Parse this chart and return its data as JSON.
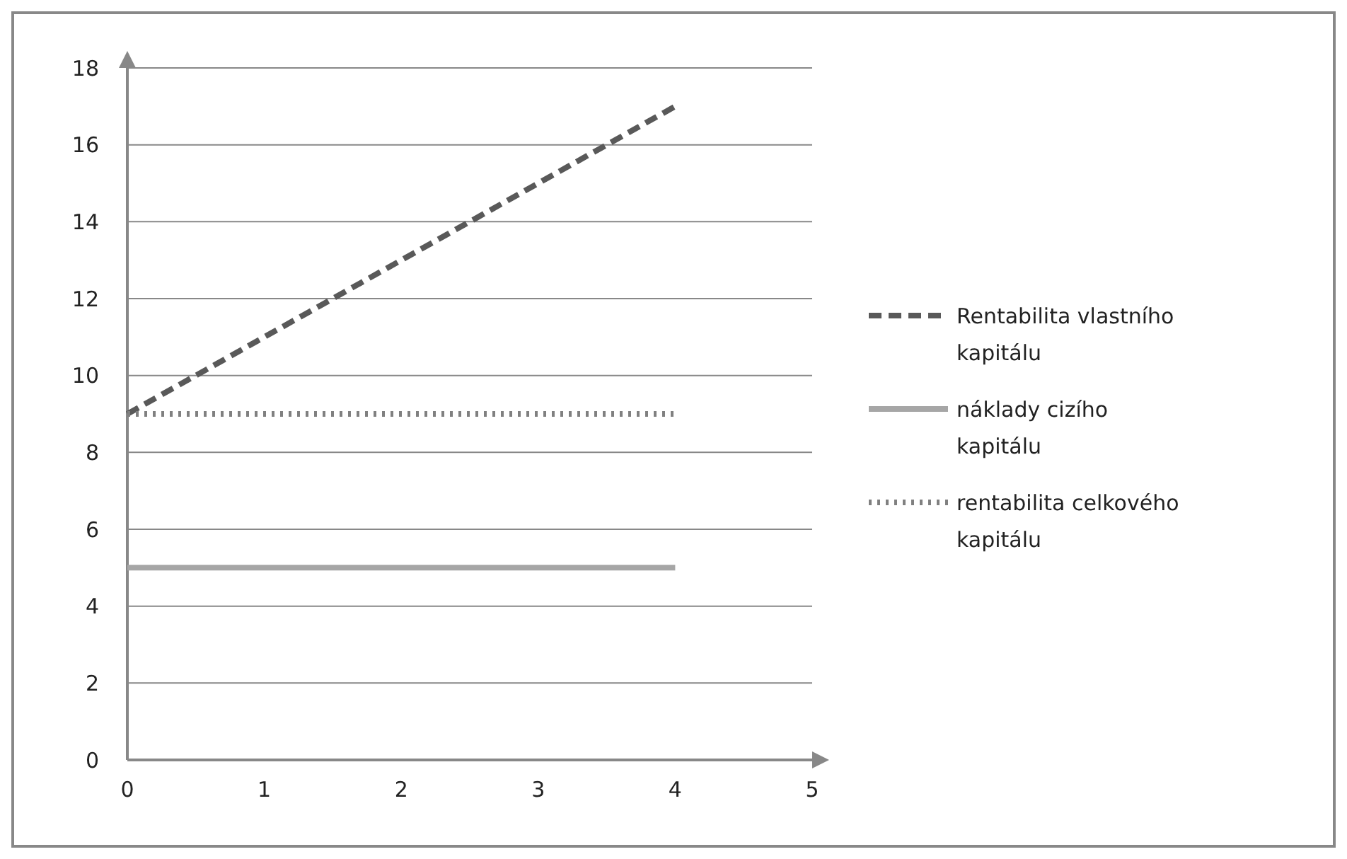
{
  "chart_data": {
    "type": "line",
    "x": [
      0,
      4
    ],
    "xlim": [
      0,
      5
    ],
    "xticks": [
      0,
      1,
      2,
      3,
      4,
      5
    ],
    "ylim": [
      0,
      18
    ],
    "yticks": [
      0,
      2,
      4,
      6,
      8,
      10,
      12,
      14,
      16,
      18
    ],
    "grid": "y",
    "legend": "right",
    "series": [
      {
        "name": "Rentabilita vlastního kapitálu",
        "color": "#595959",
        "values": [
          9,
          17
        ],
        "line_style": "dashed"
      },
      {
        "name": "náklady cizího kapitálu",
        "color": "#a6a6a6",
        "values": [
          5,
          5
        ],
        "line_style": "solid"
      },
      {
        "name": "rentabilita celkového kapitálu",
        "color": "#808080",
        "values": [
          9,
          9
        ],
        "line_style": "dotted"
      }
    ]
  }
}
